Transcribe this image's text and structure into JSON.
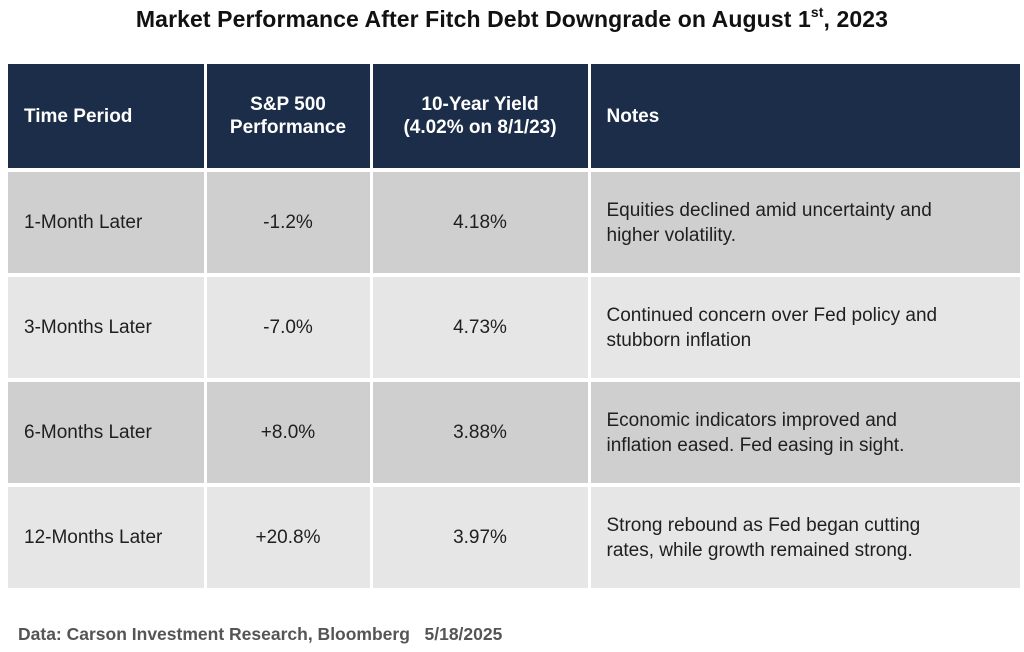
{
  "chart_data": {
    "type": "table",
    "title": "Market Performance After Fitch Debt Downgrade on August 1",
    "title_superscript": "st",
    "title_tail": ", 2023",
    "columns": [
      {
        "line1": "Time Period",
        "line2": ""
      },
      {
        "line1": "S&P 500",
        "line2": "Performance"
      },
      {
        "line1": "10-Year Yield",
        "line2": "(4.02% on 8/1/23)"
      },
      {
        "line1": "Notes",
        "line2": ""
      }
    ],
    "rows": [
      {
        "period": "1-Month Later",
        "sp500": "-1.2%",
        "yield": "4.18%",
        "notes_line1": "Equities declined amid uncertainty and",
        "notes_line2": "higher volatility."
      },
      {
        "period": "3-Months Later",
        "sp500": "-7.0%",
        "yield": "4.73%",
        "notes_line1": "Continued concern over Fed policy and",
        "notes_line2": "stubborn inflation"
      },
      {
        "period": "6-Months Later",
        "sp500": "+8.0%",
        "yield": "3.88%",
        "notes_line1": "Economic indicators improved and",
        "notes_line2": "inflation eased. Fed easing in sight."
      },
      {
        "period": "12-Months Later",
        "sp500": "+20.8%",
        "yield": "3.97%",
        "notes_line1": "Strong rebound as Fed began cutting",
        "notes_line2": "rates, while growth remained strong."
      }
    ],
    "source": "Data: Carson Investment Research, Bloomberg   5/18/2025"
  },
  "colors": {
    "header_bg": "#1b2d48",
    "row_dark": "#cfcfcf",
    "row_light": "#e6e6e6"
  }
}
